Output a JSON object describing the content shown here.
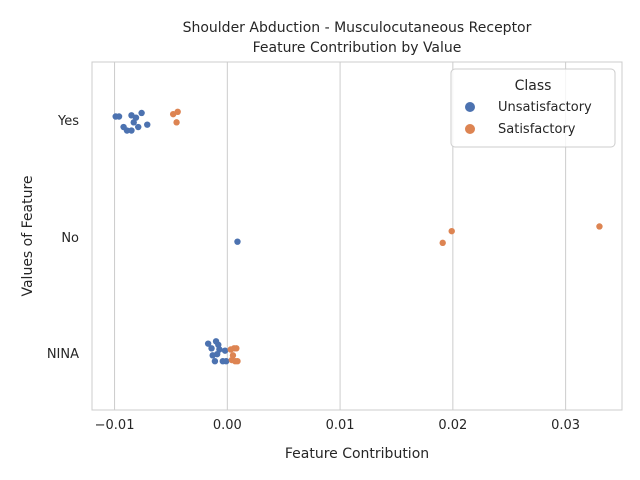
{
  "chart_data": {
    "type": "scatter",
    "title": "Shoulder Abduction - Musculocutaneous Receptor",
    "subtitle": "Feature Contribution by Value",
    "xlabel": "Feature Contribution",
    "ylabel": "Values of Feature",
    "xlim": [
      -0.012,
      0.035
    ],
    "x_ticks": [
      -0.01,
      0.0,
      0.01,
      0.02,
      0.03
    ],
    "x_tick_labels": [
      "−0.01",
      "0.00",
      "0.01",
      "0.02",
      "0.03"
    ],
    "categories": [
      "Yes",
      "No",
      "NINA"
    ],
    "grid": true,
    "legend": {
      "title": "Class",
      "placement": "top-right",
      "entries": [
        "Unsatisfactory",
        "Satisfactory"
      ]
    },
    "series": [
      {
        "name": "Unsatisfactory",
        "color": "#4c72b0",
        "points": [
          {
            "category": "Yes",
            "x": -0.0099,
            "jitter": 0.03
          },
          {
            "category": "Yes",
            "x": -0.0096,
            "jitter": 0.03
          },
          {
            "category": "Yes",
            "x": -0.0085,
            "jitter": 0.04
          },
          {
            "category": "Yes",
            "x": -0.0083,
            "jitter": -0.02
          },
          {
            "category": "Yes",
            "x": -0.0081,
            "jitter": 0.02
          },
          {
            "category": "Yes",
            "x": -0.0076,
            "jitter": 0.06
          },
          {
            "category": "Yes",
            "x": -0.0079,
            "jitter": -0.06
          },
          {
            "category": "Yes",
            "x": -0.0071,
            "jitter": -0.04
          },
          {
            "category": "Yes",
            "x": -0.0092,
            "jitter": -0.06
          },
          {
            "category": "Yes",
            "x": -0.0089,
            "jitter": -0.09
          },
          {
            "category": "Yes",
            "x": -0.0085,
            "jitter": -0.09
          },
          {
            "category": "No",
            "x": 0.0009,
            "jitter": -0.04
          },
          {
            "category": "NINA",
            "x": -0.0017,
            "jitter": 0.08
          },
          {
            "category": "NINA",
            "x": -0.001,
            "jitter": 0.1
          },
          {
            "category": "NINA",
            "x": -0.0008,
            "jitter": 0.07
          },
          {
            "category": "NINA",
            "x": -0.0014,
            "jitter": 0.04
          },
          {
            "category": "NINA",
            "x": -0.0007,
            "jitter": 0.03
          },
          {
            "category": "NINA",
            "x": -0.0013,
            "jitter": -0.02
          },
          {
            "category": "NINA",
            "x": -0.0009,
            "jitter": -0.01
          },
          {
            "category": "NINA",
            "x": -0.0002,
            "jitter": 0.02
          },
          {
            "category": "NINA",
            "x": -0.0004,
            "jitter": -0.07
          },
          {
            "category": "NINA",
            "x": -0.0011,
            "jitter": -0.07
          },
          {
            "category": "NINA",
            "x": -0.0001,
            "jitter": -0.07
          }
        ]
      },
      {
        "name": "Satisfactory",
        "color": "#dd8452",
        "points": [
          {
            "category": "Yes",
            "x": -0.0048,
            "jitter": 0.05
          },
          {
            "category": "Yes",
            "x": -0.0044,
            "jitter": 0.07
          },
          {
            "category": "Yes",
            "x": -0.0045,
            "jitter": -0.02
          },
          {
            "category": "No",
            "x": 0.033,
            "jitter": 0.09
          },
          {
            "category": "No",
            "x": 0.0199,
            "jitter": 0.05
          },
          {
            "category": "No",
            "x": 0.0191,
            "jitter": -0.05
          },
          {
            "category": "NINA",
            "x": 0.0003,
            "jitter": 0.03
          },
          {
            "category": "NINA",
            "x": 0.0006,
            "jitter": 0.04
          },
          {
            "category": "NINA",
            "x": 0.0008,
            "jitter": 0.04
          },
          {
            "category": "NINA",
            "x": 0.0005,
            "jitter": -0.02
          },
          {
            "category": "NINA",
            "x": 0.0004,
            "jitter": -0.06
          },
          {
            "category": "NINA",
            "x": 0.0007,
            "jitter": -0.07
          },
          {
            "category": "NINA",
            "x": 0.0009,
            "jitter": -0.07
          }
        ]
      }
    ]
  }
}
